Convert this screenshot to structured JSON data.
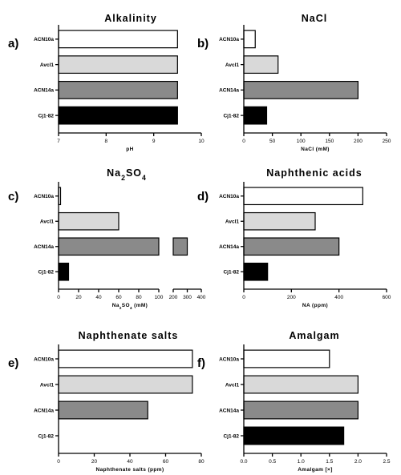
{
  "colors": {
    "ACN10a": "#ffffff",
    "Avcl1": "#d9d9d9",
    "ACN14a": "#8a8a8a",
    "Cj1-82": "#000000",
    "axis": "#000000"
  },
  "chart_data": [
    {
      "type": "bar",
      "orientation": "horizontal",
      "panel": "a)",
      "title": "Alkalinity",
      "xlabel": "pH",
      "categories": [
        "ACN10a",
        "Avcl1",
        "ACN14a",
        "Cj1-82"
      ],
      "values": [
        9.5,
        9.5,
        9.5,
        9.5
      ],
      "xlim": [
        7,
        10
      ],
      "xticks": [
        7,
        8,
        9,
        10
      ],
      "grid": false
    },
    {
      "type": "bar",
      "orientation": "horizontal",
      "panel": "b)",
      "title": "NaCl",
      "xlabel": "NaCl (mM)",
      "categories": [
        "ACN10a",
        "Avcl1",
        "ACN14a",
        "Cj1-82"
      ],
      "values": [
        20,
        60,
        200,
        40
      ],
      "xlim": [
        0,
        250
      ],
      "xticks": [
        0,
        50,
        100,
        150,
        200,
        250
      ],
      "grid": false
    },
    {
      "type": "bar",
      "orientation": "horizontal",
      "panel": "c)",
      "title": "Na2SO4",
      "title_parts": [
        "Na",
        "2",
        "SO",
        "4"
      ],
      "xlabel": "Na2SO4 (mM)",
      "xlabel_parts": [
        "Na",
        "2",
        "SO",
        "4",
        " (mM)"
      ],
      "categories": [
        "ACN10a",
        "Avcl1",
        "ACN14a",
        "Cj1-82"
      ],
      "values": [
        2,
        60,
        300,
        10
      ],
      "axis_break": [
        100,
        200
      ],
      "xlim": [
        0,
        400
      ],
      "xticks": [
        0,
        20,
        40,
        60,
        80,
        100,
        200,
        300,
        400
      ],
      "grid": false
    },
    {
      "type": "bar",
      "orientation": "horizontal",
      "panel": "d)",
      "title": "Naphthenic acids",
      "xlabel": "NA (ppm)",
      "categories": [
        "ACN10a",
        "Avcl1",
        "ACN14a",
        "Cj1-82"
      ],
      "values": [
        500,
        300,
        400,
        100
      ],
      "xlim": [
        0,
        600
      ],
      "xticks": [
        0,
        200,
        400,
        600
      ],
      "grid": false
    },
    {
      "type": "bar",
      "orientation": "horizontal",
      "panel": "e)",
      "title": "Naphthenate salts",
      "xlabel": "Naphthenate salts (ppm)",
      "categories": [
        "ACN10a",
        "Avcl1",
        "ACN14a",
        "Cj1-82"
      ],
      "values": [
        75,
        75,
        50,
        0
      ],
      "xlim": [
        0,
        80
      ],
      "xticks": [
        0,
        20,
        40,
        60,
        80
      ],
      "grid": false
    },
    {
      "type": "bar",
      "orientation": "horizontal",
      "panel": "f)",
      "title": "Amalgam",
      "xlabel": "Amalgam [×]",
      "categories": [
        "ACN10a",
        "Avcl1",
        "ACN14a",
        "Cj1-82"
      ],
      "values": [
        1.5,
        2.0,
        2.0,
        1.75
      ],
      "xlim": [
        0,
        2.5
      ],
      "xticks": [
        0.0,
        0.5,
        1.0,
        1.5,
        2.0,
        2.5
      ],
      "grid": false
    }
  ]
}
